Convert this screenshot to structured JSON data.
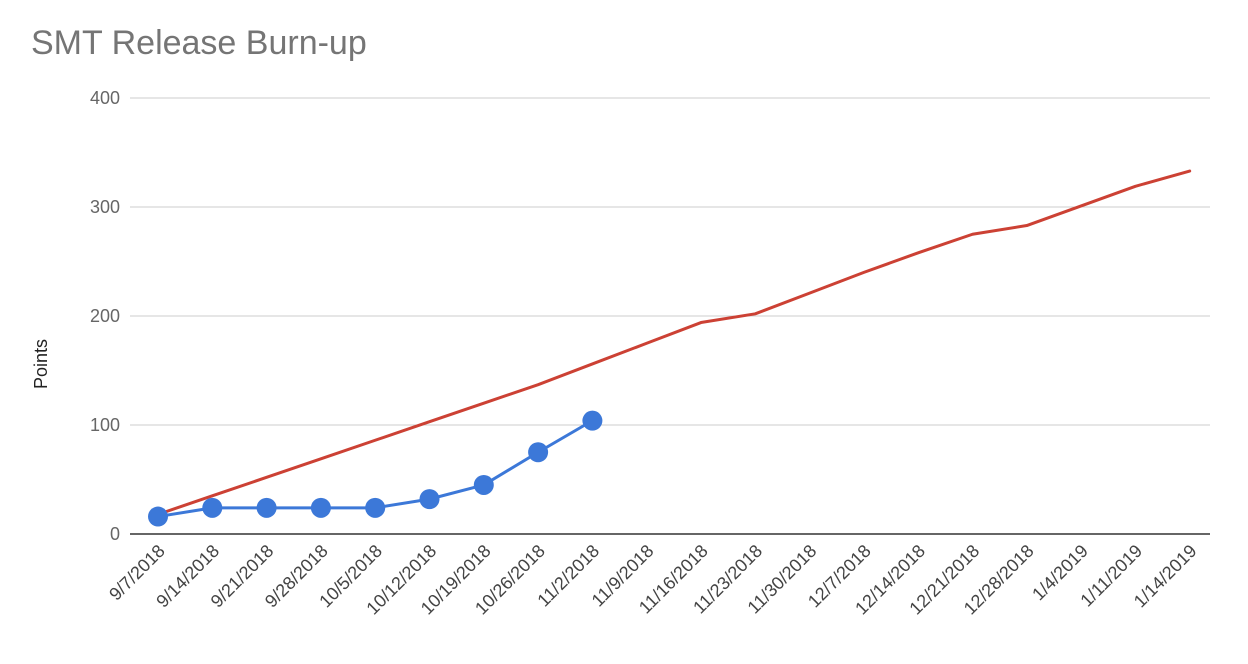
{
  "chart_data": {
    "type": "line",
    "title": "SMT Release Burn-up",
    "xlabel": "",
    "ylabel": "Points",
    "ylim": [
      0,
      400
    ],
    "yticks": [
      0,
      100,
      200,
      300,
      400
    ],
    "grid": true,
    "legend": "none",
    "categories": [
      "9/7/2018",
      "9/14/2018",
      "9/21/2018",
      "9/28/2018",
      "10/5/2018",
      "10/12/2018",
      "10/19/2018",
      "10/26/2018",
      "11/2/2018",
      "11/9/2018",
      "11/16/2018",
      "11/23/2018",
      "11/30/2018",
      "12/7/2018",
      "12/14/2018",
      "12/21/2018",
      "12/28/2018",
      "1/4/2019",
      "1/11/2019",
      "1/14/2019"
    ],
    "series": [
      {
        "color": "#cc4134",
        "markers": false,
        "values": [
          18,
          35,
          52,
          69,
          86,
          103,
          120,
          137,
          156,
          175,
          194,
          202,
          221,
          240,
          258,
          275,
          283,
          301,
          319,
          333
        ]
      },
      {
        "color": "#3c78d8",
        "markers": true,
        "values": [
          16,
          24,
          24,
          24,
          24,
          32,
          45,
          75,
          104,
          null,
          null,
          null,
          null,
          null,
          null,
          null,
          null,
          null,
          null,
          null
        ]
      }
    ]
  }
}
